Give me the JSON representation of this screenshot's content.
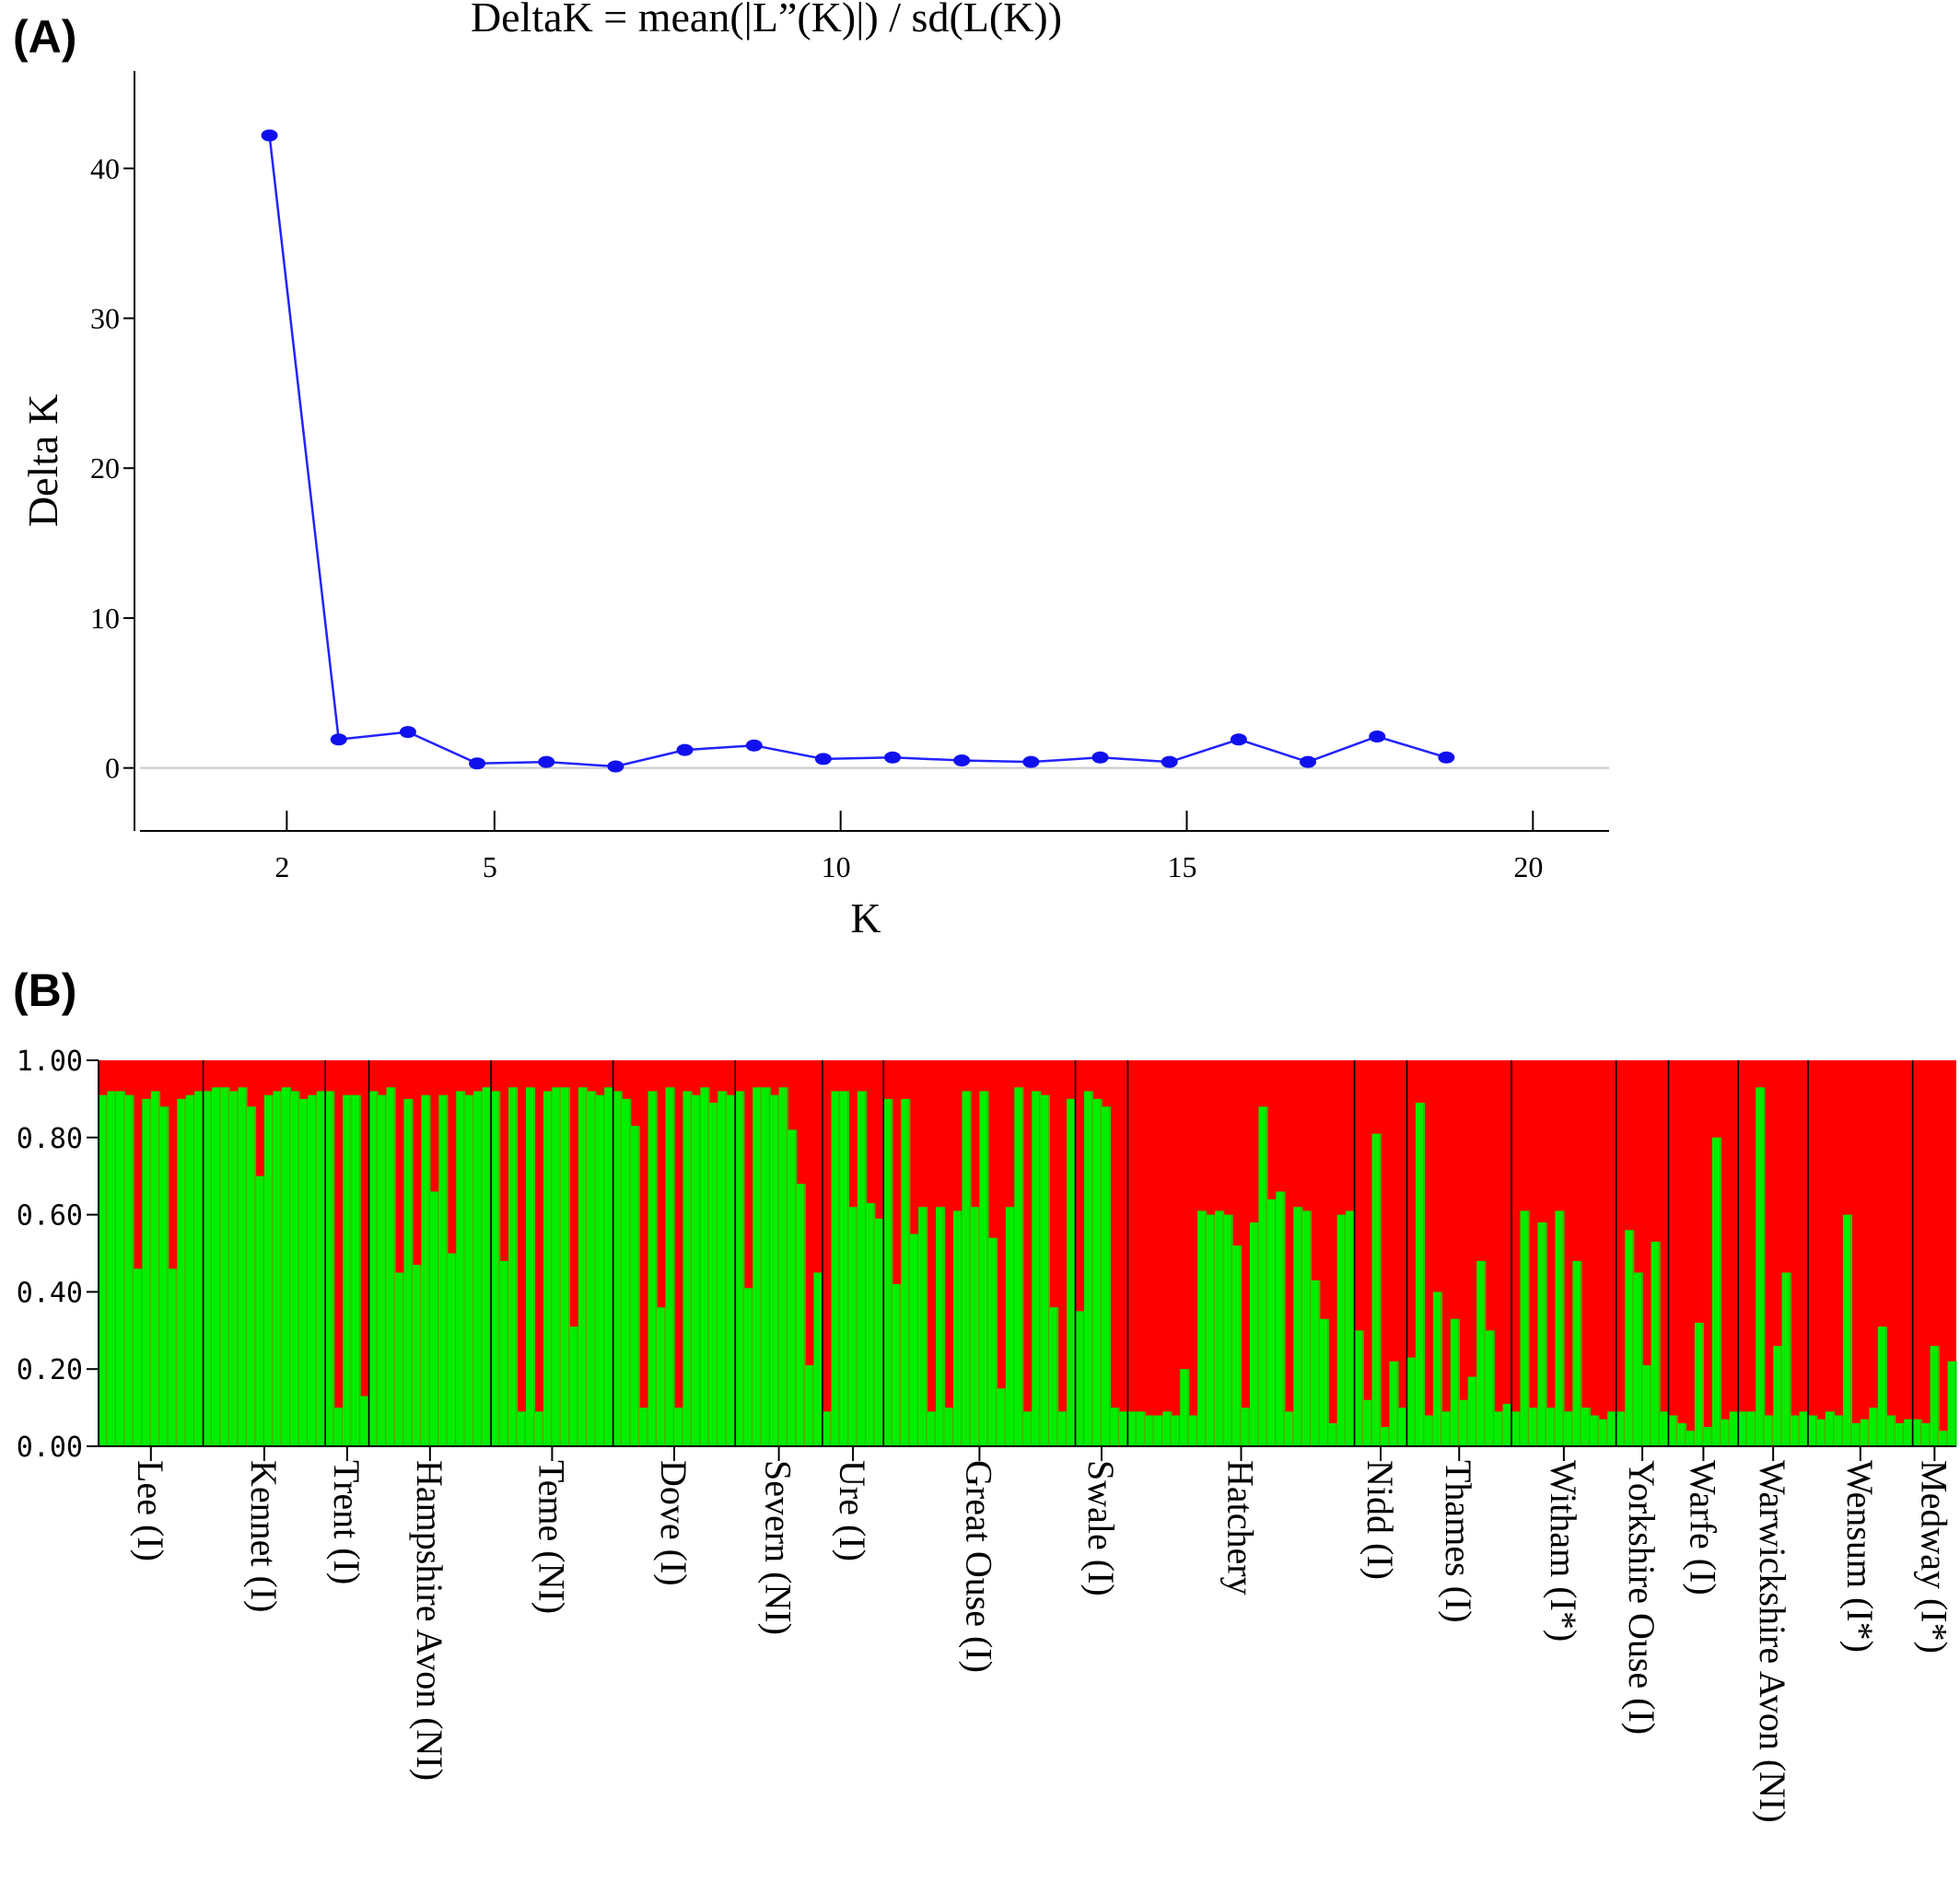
{
  "panel_a": {
    "label": "(A)"
  },
  "panel_b": {
    "label": "(B)"
  },
  "colors": {
    "line": "#2222ff",
    "marker": "#1010ee",
    "cluster1": "#00ee00",
    "cluster2": "#ff0000",
    "bar_divider": "#9a6a00"
  },
  "chart_data": [
    {
      "type": "line",
      "title": "DeltaK = mean(|L”(K)|) / sd(L(K))",
      "xlabel": "K",
      "ylabel": "Delta K",
      "x_ticks": [
        2,
        5,
        10,
        15,
        20
      ],
      "y_ticks": [
        0,
        10,
        20,
        30,
        40
      ],
      "xlim": [
        -0.2,
        21.1
      ],
      "ylim": [
        -4.2,
        46.5
      ],
      "baseline": 0,
      "series": [
        {
          "x": [
            1.75,
            2.75,
            3.75,
            4.75,
            5.75,
            6.75,
            7.75,
            8.75,
            9.75,
            10.75,
            11.75,
            12.75,
            13.75,
            14.75,
            15.75,
            16.75,
            17.75,
            18.75
          ],
          "values": [
            42.2,
            1.9,
            2.4,
            0.3,
            0.4,
            0.1,
            1.2,
            1.5,
            0.6,
            0.7,
            0.5,
            0.4,
            0.7,
            0.4,
            1.9,
            0.4,
            2.1,
            0.7
          ]
        }
      ]
    },
    {
      "type": "bar",
      "stacked": true,
      "ylim": [
        0,
        1
      ],
      "y_ticks": [
        "0.00",
        "0.20",
        "0.40",
        "0.60",
        "0.80",
        "1.00"
      ],
      "populations": [
        {
          "name": "Lee (I)",
          "green": [
            0.91,
            0.92,
            0.92,
            0.91,
            0.46,
            0.9,
            0.92,
            0.88,
            0.46,
            0.9,
            0.91,
            0.92
          ]
        },
        {
          "name": "Kennet (I)",
          "green": [
            0.92,
            0.93,
            0.93,
            0.92,
            0.93,
            0.88,
            0.7,
            0.91,
            0.92,
            0.93,
            0.92,
            0.9,
            0.91,
            0.92
          ]
        },
        {
          "name": "Trent (I)",
          "green": [
            0.92,
            0.1,
            0.91,
            0.91,
            0.13
          ]
        },
        {
          "name": "Hampshire Avon (NI)",
          "green": [
            0.92,
            0.91,
            0.93,
            0.45,
            0.9,
            0.47,
            0.91,
            0.66,
            0.91,
            0.5,
            0.92,
            0.91,
            0.92,
            0.93
          ]
        },
        {
          "name": "Teme (NI)",
          "green": [
            0.92,
            0.48,
            0.93,
            0.09,
            0.93,
            0.09,
            0.92,
            0.93,
            0.93,
            0.31,
            0.93,
            0.92,
            0.91,
            0.93
          ]
        },
        {
          "name": "Dove (I)",
          "green": [
            0.92,
            0.9,
            0.83,
            0.1,
            0.92,
            0.36,
            0.93,
            0.1,
            0.92,
            0.91,
            0.93,
            0.89,
            0.92,
            0.91
          ]
        },
        {
          "name": "Severn (NI)",
          "green": [
            0.92,
            0.41,
            0.93,
            0.93,
            0.91,
            0.93,
            0.82,
            0.68,
            0.21,
            0.45
          ]
        },
        {
          "name": "Ure (I)",
          "green": [
            0.09,
            0.92,
            0.92,
            0.62,
            0.92,
            0.63,
            0.59
          ]
        },
        {
          "name": "Great Ouse (I)",
          "green": [
            0.9,
            0.42,
            0.9,
            0.55,
            0.62,
            0.09,
            0.62,
            0.1,
            0.61,
            0.92,
            0.62,
            0.92,
            0.54,
            0.15,
            0.62,
            0.93,
            0.09,
            0.92,
            0.91,
            0.36,
            0.09,
            0.9
          ]
        },
        {
          "name": "Swale (I)",
          "green": [
            0.35,
            0.92,
            0.9,
            0.88,
            0.1,
            0.09
          ]
        },
        {
          "name": "Hatchery",
          "green": [
            0.09,
            0.09,
            0.08,
            0.08,
            0.09,
            0.08,
            0.2,
            0.08,
            0.61,
            0.6,
            0.61,
            0.6,
            0.52,
            0.1,
            0.58,
            0.88,
            0.64,
            0.66,
            0.09,
            0.62,
            0.61,
            0.43,
            0.33,
            0.06,
            0.6,
            0.61
          ]
        },
        {
          "name": "Nidd (I)",
          "green": [
            0.3,
            0.12,
            0.81,
            0.05,
            0.22,
            0.1
          ]
        },
        {
          "name": "Thames (I)",
          "green": [
            0.23,
            0.89,
            0.08,
            0.4,
            0.09,
            0.33,
            0.12,
            0.18,
            0.48,
            0.3,
            0.09,
            0.11
          ]
        },
        {
          "name": "Witham (I*)",
          "green": [
            0.09,
            0.61,
            0.1,
            0.58,
            0.1,
            0.61,
            0.09,
            0.48,
            0.1,
            0.08,
            0.07,
            0.09
          ]
        },
        {
          "name": "Yorkshire Ouse (I)",
          "green": [
            0.09,
            0.56,
            0.45,
            0.21,
            0.53,
            0.09
          ]
        },
        {
          "name": "Warfe (I)",
          "green": [
            0.08,
            0.06,
            0.04,
            0.32,
            0.05,
            0.8,
            0.07,
            0.09
          ]
        },
        {
          "name": "Warwickshire Avon (NI)",
          "green": [
            0.09,
            0.09,
            0.93,
            0.08,
            0.26,
            0.45,
            0.08,
            0.09
          ]
        },
        {
          "name": "Wensum (I*)",
          "green": [
            0.08,
            0.07,
            0.09,
            0.08,
            0.6,
            0.06,
            0.07,
            0.1,
            0.31,
            0.08,
            0.06,
            0.07
          ]
        },
        {
          "name": "Medway (I*)",
          "green": [
            0.07,
            0.06,
            0.26,
            0.04,
            0.22
          ]
        }
      ]
    }
  ]
}
